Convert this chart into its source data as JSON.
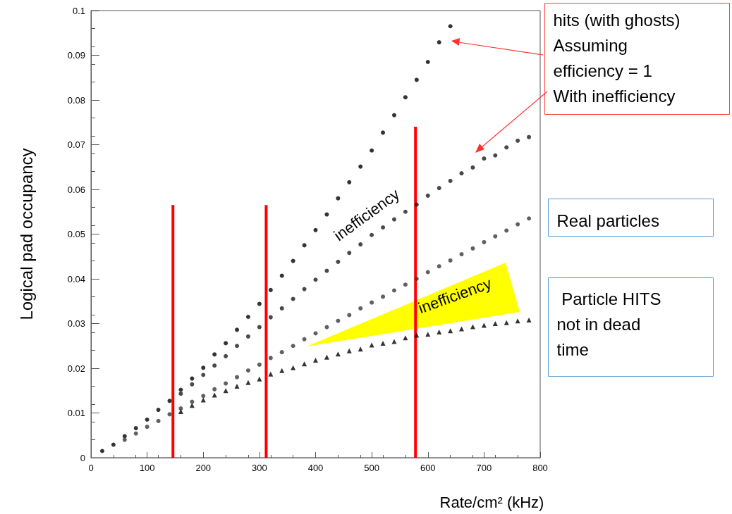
{
  "chart_data": {
    "type": "scatter",
    "xlabel": "Rate/cm² (kHz)",
    "ylabel": "Logical pad occupancy",
    "x": [
      60,
      80,
      100,
      120,
      140,
      160,
      180,
      200,
      220,
      240,
      260,
      280,
      300,
      320,
      340,
      360,
      380,
      400,
      420,
      440,
      460,
      480,
      500,
      520,
      540,
      560,
      580,
      600,
      620,
      640,
      660,
      680,
      700,
      720,
      740,
      760,
      780
    ],
    "xlim": [
      0,
      800
    ],
    "xticks": [
      0,
      100,
      200,
      300,
      400,
      500,
      600,
      700,
      800
    ],
    "ylim": [
      0,
      0.1
    ],
    "yticks": [
      0,
      0.01,
      0.02,
      0.03,
      0.04,
      0.05,
      0.06,
      0.07,
      0.08,
      0.09,
      0.1
    ],
    "grid": false,
    "series": [
      {
        "color": "#000000",
        "marker": "circle",
        "x": [
          20,
          40,
          60,
          80,
          100,
          120,
          140,
          160,
          180,
          200,
          220,
          240,
          260,
          280,
          300,
          320,
          340,
          360,
          380,
          400,
          420,
          440,
          460,
          480,
          500,
          520,
          540,
          560,
          580,
          600,
          620,
          640
        ],
        "values": [
          0.0015,
          0.0029,
          0.0048,
          0.0066,
          0.0085,
          0.0107,
          0.0127,
          0.0152,
          0.0177,
          0.0201,
          0.0231,
          0.0256,
          0.0286,
          0.0315,
          0.0344,
          0.0375,
          0.0407,
          0.044,
          0.0475,
          0.0509,
          0.0544,
          0.058,
          0.0616,
          0.0651,
          0.0687,
          0.0727,
          0.0766,
          0.0806,
          0.0845,
          0.0885,
          0.0929,
          0.0965
        ]
      },
      {
        "color": "#1c1c1c",
        "marker": "circle",
        "values": [
          null,
          null,
          null,
          null,
          null,
          0.0143,
          0.0164,
          0.0185,
          0.0206,
          0.0227,
          0.025,
          0.0271,
          0.0292,
          0.0314,
          0.0334,
          0.0355,
          0.0377,
          0.0398,
          0.0418,
          0.0438,
          0.0458,
          0.0477,
          0.0498,
          0.0515,
          0.0533,
          0.055,
          0.0566,
          0.0586,
          0.0603,
          0.0619,
          0.0636,
          0.0649,
          0.0669,
          0.0676,
          0.0694,
          0.0709,
          0.0717
        ]
      },
      {
        "color": "#383838",
        "marker": "circle",
        "values": [
          0.004,
          0.0054,
          0.0069,
          0.0082,
          0.0097,
          0.011,
          0.0125,
          0.0138,
          0.0153,
          0.0166,
          0.018,
          0.0195,
          0.0208,
          0.0223,
          0.0236,
          0.025,
          0.0265,
          0.0278,
          0.0292,
          0.0306,
          0.0319,
          0.0334,
          0.0347,
          0.036,
          0.0374,
          0.0387,
          0.04,
          0.0415,
          0.0428,
          0.0441,
          0.0455,
          0.0468,
          0.0482,
          0.0495,
          0.0508,
          0.0522,
          0.0535
        ]
      },
      {
        "color": "#000000",
        "marker": "triangle",
        "values": [
          null,
          null,
          null,
          null,
          null,
          0.0103,
          0.0117,
          0.0129,
          0.014,
          0.015,
          0.016,
          0.0168,
          0.0176,
          0.0187,
          0.0195,
          0.0201,
          0.021,
          0.0218,
          0.0225,
          0.0232,
          0.0239,
          0.0243,
          0.0252,
          0.0256,
          0.026,
          0.0268,
          0.0274,
          0.0276,
          0.0281,
          0.0284,
          0.0288,
          0.0293,
          0.0296,
          0.03,
          0.0302,
          0.0306,
          0.0308
        ]
      },
      {
        "type": "line",
        "color": "#ff0000",
        "marker": "none",
        "line_style": "solid",
        "x": [
          146,
          146
        ],
        "values": [
          0,
          0.0565
        ]
      },
      {
        "type": "line",
        "color": "#ff0000",
        "marker": "none",
        "line_style": "solid",
        "x": [
          312,
          312
        ],
        "values": [
          0,
          0.0565
        ]
      },
      {
        "type": "line",
        "color": "#ff0000",
        "marker": "none",
        "line_style": "solid",
        "x": [
          578,
          578
        ],
        "values": [
          0,
          0.074
        ]
      }
    ],
    "annotations": [
      "hits (with ghosts)\nAssuming\nefficiency = 1\nWith inefficiency",
      "Real particles",
      " Particle HITS\nnot in dead\ntime",
      "inefficiency",
      "inefficiency"
    ]
  }
}
